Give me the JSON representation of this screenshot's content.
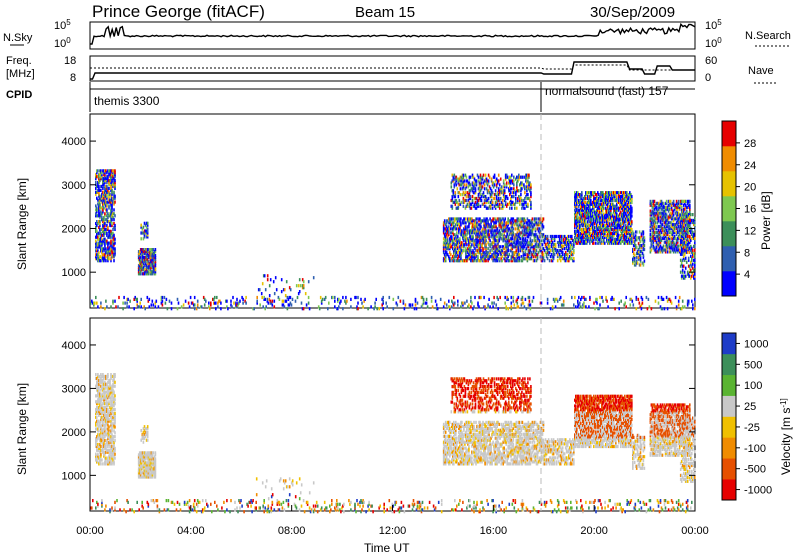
{
  "header": {
    "station": "Prince George (fitACF)",
    "beam": "Beam 15",
    "date": "30/Sep/2009"
  },
  "panels": {
    "sky": {
      "left_label": "N.Sky",
      "left_ticks": [
        "10^5",
        "10^0"
      ],
      "right_ticks": [
        "10^5",
        "10^0"
      ],
      "right_label": "N.Search"
    },
    "freq": {
      "left_label_1": "Freq.",
      "left_label_2": "[MHz]",
      "left_ticks": [
        "18",
        "8"
      ],
      "right_ticks": [
        "60",
        "0"
      ],
      "right_label": "Nave"
    },
    "cpid": {
      "label": "CPID",
      "programs": [
        {
          "name": "themis 3300"
        },
        {
          "name": "normalsound (fast) 157"
        }
      ]
    }
  },
  "chart_data": {
    "type": "heatmap",
    "x_axis": {
      "label": "Time UT",
      "ticks": [
        "00:00",
        "04:00",
        "08:00",
        "12:00",
        "16:00",
        "20:00",
        "00:00"
      ],
      "range_hours": [
        0,
        24
      ]
    },
    "y_axis": {
      "label": "Slant Range [km]",
      "ticks": [
        "1000",
        "2000",
        "3000",
        "4000"
      ],
      "range_km": [
        180,
        4620
      ]
    },
    "program_change_hour": 18.0,
    "power_panel": {
      "colorbar_label": "Power [dB]",
      "colorbar_ticks": [
        "4",
        "8",
        "12",
        "16",
        "20",
        "24",
        "28"
      ],
      "range": [
        0,
        30
      ],
      "colors": [
        "#0000ff",
        "#2f5fb0",
        "#3c8f5a",
        "#7ec850",
        "#e6c200",
        "#f08c00",
        "#e60000"
      ]
    },
    "velocity_panel": {
      "colorbar_label": "Velocity [m s^-1]",
      "colorbar_ticks": [
        "1000",
        "500",
        "100",
        "25",
        "-25",
        "-100",
        "-500",
        "-1000"
      ],
      "colors": [
        "#1e3cc8",
        "#3c8f5a",
        "#5ab432",
        "#c8c8c8",
        "#f0c000",
        "#f08c00",
        "#e65000",
        "#e60000"
      ]
    }
  }
}
